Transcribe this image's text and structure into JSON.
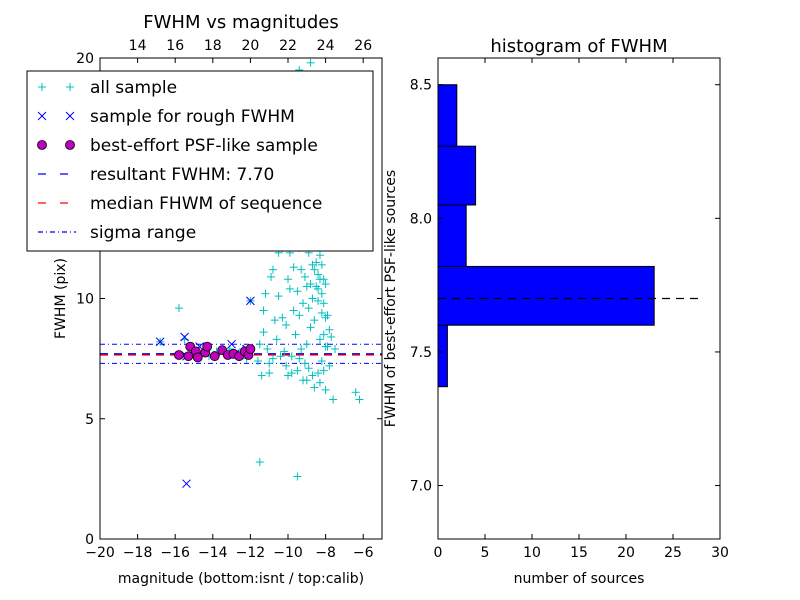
{
  "chart_data": [
    {
      "type": "scatter",
      "title": "FWHM vs magnitudes",
      "xlabel": "magnitude (bottom:isnt / top:calib)",
      "ylabel": "FWHM (pix)",
      "xlim": [
        -20,
        -5
      ],
      "xlim_top": [
        12,
        27
      ],
      "ylim": [
        0,
        20
      ],
      "xticks": [
        "−20",
        "−18",
        "−16",
        "−14",
        "−12",
        "−10",
        "−8",
        "−6"
      ],
      "xticks_top": [
        "14",
        "16",
        "18",
        "20",
        "22",
        "24",
        "26"
      ],
      "yticks": [
        "0",
        "5",
        "10"
      ],
      "ytick_top": "20",
      "grid": false,
      "legend_position": "top-left",
      "colors": {
        "all": "#00bfbf",
        "rough": "#0000ff",
        "psf": "#bf00bf",
        "resultant": "#0000ff",
        "median": "#ff0000",
        "sigma": "#0000ff"
      },
      "legend": [
        {
          "key": "all",
          "label": "all sample",
          "marker": "plus"
        },
        {
          "key": "rough",
          "label": "sample for rough FWHM",
          "marker": "x"
        },
        {
          "key": "psf",
          "label": "best-effort PSF-like sample",
          "marker": "circle"
        },
        {
          "key": "resultant",
          "label": "resultant FWHM: 7.70",
          "marker": "dashed"
        },
        {
          "key": "median",
          "label": "median FHWM of sequence",
          "marker": "dashed"
        },
        {
          "key": "sigma",
          "label": "sigma range",
          "marker": "dashdot"
        }
      ],
      "lines": {
        "resultant_fwhm": 7.7,
        "median_fwhm": 7.65,
        "sigma_range": [
          7.3,
          8.1
        ]
      },
      "series": [
        {
          "key": "all",
          "points": [
            [
              -15.8,
              9.6
            ],
            [
              -16.8,
              8.2
            ],
            [
              -15.5,
              8.3
            ],
            [
              -12.0,
              9.9
            ],
            [
              -11.3,
              8.6
            ],
            [
              -11.1,
              7.9
            ],
            [
              -11.0,
              7.3
            ],
            [
              -11.4,
              6.8
            ],
            [
              -10.8,
              7.5
            ],
            [
              -11.0,
              6.9
            ],
            [
              -10.6,
              8.3
            ],
            [
              -10.4,
              7.6
            ],
            [
              -10.2,
              7.8
            ],
            [
              -10.0,
              6.8
            ],
            [
              -10.1,
              8.9
            ],
            [
              -9.8,
              7.6
            ],
            [
              -9.5,
              7.0
            ],
            [
              -9.3,
              7.9
            ],
            [
              -9.2,
              6.6
            ],
            [
              -9.6,
              8.5
            ],
            [
              -9.4,
              9.3
            ],
            [
              -9.0,
              8.1
            ],
            [
              -9.1,
              7.3
            ],
            [
              -8.9,
              9.6
            ],
            [
              -8.8,
              8.8
            ],
            [
              -8.7,
              10.0
            ],
            [
              -8.6,
              9.1
            ],
            [
              -8.5,
              10.5
            ],
            [
              -8.4,
              9.9
            ],
            [
              -8.3,
              10.8
            ],
            [
              -8.2,
              9.4
            ],
            [
              -8.1,
              8.5
            ],
            [
              -8.0,
              9.2
            ],
            [
              -7.9,
              8.0
            ],
            [
              -8.6,
              11.2
            ],
            [
              -8.5,
              11.5
            ],
            [
              -8.4,
              11.0
            ],
            [
              -8.3,
              11.8
            ],
            [
              -8.2,
              10.2
            ],
            [
              -8.7,
              11.4
            ],
            [
              -8.8,
              10.6
            ],
            [
              -8.9,
              11.9
            ],
            [
              -8.6,
              12.2
            ],
            [
              -8.5,
              12.4
            ],
            [
              -8.7,
              13.0
            ],
            [
              -8.8,
              12.5
            ],
            [
              -8.9,
              13.3
            ],
            [
              -8.4,
              12.8
            ],
            [
              -8.6,
              13.5
            ],
            [
              -8.5,
              14.0
            ],
            [
              -8.3,
              12.3
            ],
            [
              -8.2,
              11.4
            ],
            [
              -8.1,
              10.8
            ],
            [
              -9.0,
              10.5
            ],
            [
              -9.1,
              10.9
            ],
            [
              -9.2,
              9.8
            ],
            [
              -9.3,
              11.2
            ],
            [
              -9.5,
              10.3
            ],
            [
              -9.7,
              9.5
            ],
            [
              -9.9,
              10.4
            ],
            [
              -9.9,
              11.9
            ],
            [
              -10.0,
              10.8
            ],
            [
              -9.4,
              12.1
            ],
            [
              -9.7,
              11.3
            ],
            [
              -10.3,
              9.2
            ],
            [
              -10.5,
              10.1
            ],
            [
              -10.7,
              9.1
            ],
            [
              -10.8,
              11.2
            ],
            [
              -10.5,
              11.9
            ],
            [
              -10.3,
              12.1
            ],
            [
              -10.9,
              10.9
            ],
            [
              -11.2,
              10.2
            ],
            [
              -11.3,
              9.5
            ],
            [
              -11.5,
              8.1
            ],
            [
              -9.6,
              13.2
            ],
            [
              -9.4,
              13.4
            ],
            [
              -9.2,
              12.9
            ],
            [
              -9.0,
              13.8
            ],
            [
              -8.8,
              14.5
            ],
            [
              -8.6,
              15.2
            ],
            [
              -8.4,
              15.8
            ],
            [
              -8.7,
              16.6
            ],
            [
              -8.9,
              17.5
            ],
            [
              -8.6,
              18.4
            ],
            [
              -8.5,
              19.3
            ],
            [
              -8.8,
              19.8
            ],
            [
              -9.4,
              19.5
            ],
            [
              -8.0,
              10.6
            ],
            [
              -7.9,
              9.3
            ],
            [
              -7.7,
              8.4
            ],
            [
              -7.5,
              7.9
            ],
            [
              -7.8,
              7.2
            ],
            [
              -8.1,
              7.0
            ],
            [
              -8.4,
              6.9
            ],
            [
              -8.7,
              6.8
            ],
            [
              -9.0,
              6.6
            ],
            [
              -8.3,
              6.5
            ],
            [
              -8.6,
              6.3
            ],
            [
              -8.9,
              7.1
            ],
            [
              -9.4,
              7.5
            ],
            [
              -7.6,
              5.8
            ],
            [
              -8.0,
              6.2
            ],
            [
              -6.4,
              6.1
            ],
            [
              -6.2,
              5.8
            ],
            [
              -11.5,
              3.2
            ],
            [
              -9.5,
              2.6
            ],
            [
              -13.1,
              7.9
            ],
            [
              -12.7,
              7.7
            ],
            [
              -13.8,
              7.8
            ],
            [
              -12.4,
              7.9
            ],
            [
              -14.2,
              7.6
            ],
            [
              -12.2,
              7.5
            ],
            [
              -11.6,
              7.4
            ],
            [
              -10.1,
              7.2
            ],
            [
              -9.8,
              6.9
            ],
            [
              -8.2,
              7.4
            ],
            [
              -8.0,
              8.0
            ],
            [
              -7.8,
              8.7
            ],
            [
              -8.3,
              8.3
            ],
            [
              -8.1,
              9.8
            ],
            [
              -8.4,
              10.4
            ]
          ]
        },
        {
          "key": "rough",
          "points": [
            [
              -16.8,
              8.2
            ],
            [
              -15.5,
              8.4
            ],
            [
              -12.0,
              9.9
            ],
            [
              -13.0,
              8.1
            ],
            [
              -12.8,
              7.7
            ],
            [
              -15.4,
              7.6
            ],
            [
              -14.7,
              8.0
            ],
            [
              -12.2,
              7.9
            ],
            [
              -15.4,
              2.3
            ]
          ]
        },
        {
          "key": "psf",
          "points": [
            [
              -15.8,
              7.65
            ],
            [
              -15.3,
              7.6
            ],
            [
              -15.2,
              8.0
            ],
            [
              -14.9,
              7.8
            ],
            [
              -14.8,
              7.55
            ],
            [
              -14.4,
              7.75
            ],
            [
              -14.3,
              8.0
            ],
            [
              -13.9,
              7.6
            ],
            [
              -13.5,
              7.85
            ],
            [
              -13.2,
              7.65
            ],
            [
              -12.9,
              7.7
            ],
            [
              -12.6,
              7.6
            ],
            [
              -12.3,
              7.8
            ],
            [
              -12.1,
              7.65
            ],
            [
              -12.0,
              7.9
            ]
          ]
        }
      ]
    },
    {
      "type": "bar",
      "title": "histogram of FWHM",
      "xlabel": "number of sources",
      "ylabel": "FWHM of best-effort PSF-like sources",
      "orientation": "horizontal",
      "xlim": [
        0,
        30
      ],
      "ylim": [
        6.8,
        8.6
      ],
      "xticks": [
        "0",
        "5",
        "10",
        "15",
        "20",
        "25",
        "30"
      ],
      "yticks": [
        "7.0",
        "7.5",
        "8.0",
        "8.5"
      ],
      "bar_color": "#0000ff",
      "median_line": 7.7,
      "bins": [
        {
          "from": 7.37,
          "to": 7.6,
          "count": 1
        },
        {
          "from": 7.6,
          "to": 7.82,
          "count": 23
        },
        {
          "from": 7.82,
          "to": 8.05,
          "count": 3
        },
        {
          "from": 8.05,
          "to": 8.27,
          "count": 4
        },
        {
          "from": 8.27,
          "to": 8.5,
          "count": 2
        }
      ]
    }
  ]
}
